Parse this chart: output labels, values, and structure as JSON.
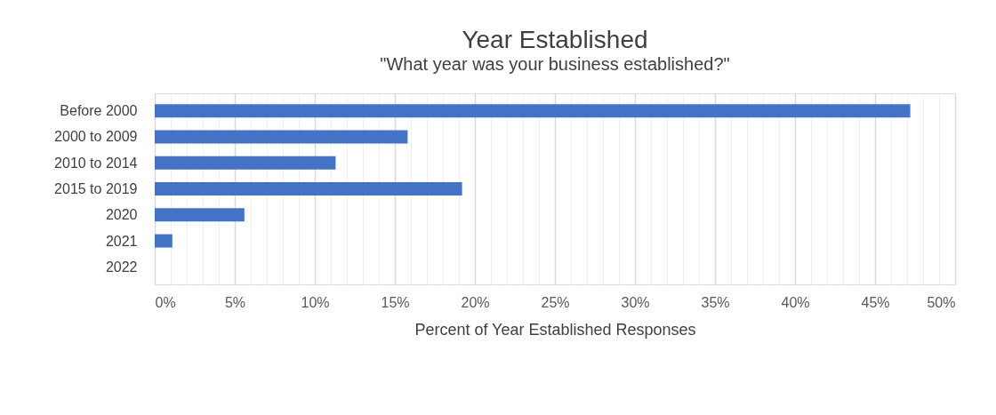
{
  "chart_data": {
    "type": "bar",
    "orientation": "horizontal",
    "title": "Year Established",
    "subtitle": "\"What year was your business established?\"",
    "xlabel": "Percent of Year Established Responses",
    "categories": [
      "Before 2000",
      "2000 to 2009",
      "2010 to 2014",
      "2015 to 2019",
      "2020",
      "2021",
      "2022"
    ],
    "values": [
      47.2,
      15.8,
      11.3,
      19.2,
      5.6,
      1.1,
      0
    ],
    "color": "#4472c4",
    "xlim": [
      0,
      50
    ],
    "xticks": [
      {
        "value": 0,
        "label": "0%"
      },
      {
        "value": 1,
        "label": null
      },
      {
        "value": 2,
        "label": null
      },
      {
        "value": 3,
        "label": null
      },
      {
        "value": 4,
        "label": null
      },
      {
        "value": 5,
        "label": "5%"
      },
      {
        "value": 6,
        "label": null
      },
      {
        "value": 7,
        "label": null
      },
      {
        "value": 8,
        "label": null
      },
      {
        "value": 9,
        "label": null
      },
      {
        "value": 10,
        "label": "10%"
      },
      {
        "value": 11,
        "label": null
      },
      {
        "value": 12,
        "label": null
      },
      {
        "value": 13,
        "label": null
      },
      {
        "value": 14,
        "label": null
      },
      {
        "value": 15,
        "label": "15%"
      },
      {
        "value": 16,
        "label": null
      },
      {
        "value": 17,
        "label": null
      },
      {
        "value": 18,
        "label": null
      },
      {
        "value": 19,
        "label": null
      },
      {
        "value": 20,
        "label": "20%"
      },
      {
        "value": 21,
        "label": null
      },
      {
        "value": 22,
        "label": null
      },
      {
        "value": 23,
        "label": null
      },
      {
        "value": 24,
        "label": null
      },
      {
        "value": 25,
        "label": "25%"
      },
      {
        "value": 26,
        "label": null
      },
      {
        "value": 27,
        "label": null
      },
      {
        "value": 28,
        "label": null
      },
      {
        "value": 29,
        "label": null
      },
      {
        "value": 30,
        "label": "30%"
      },
      {
        "value": 31,
        "label": null
      },
      {
        "value": 32,
        "label": null
      },
      {
        "value": 33,
        "label": null
      },
      {
        "value": 34,
        "label": null
      },
      {
        "value": 35,
        "label": "35%"
      },
      {
        "value": 36,
        "label": null
      },
      {
        "value": 37,
        "label": null
      },
      {
        "value": 38,
        "label": null
      },
      {
        "value": 39,
        "label": null
      },
      {
        "value": 40,
        "label": "40%"
      },
      {
        "value": 41,
        "label": null
      },
      {
        "value": 42,
        "label": null
      },
      {
        "value": 43,
        "label": null
      },
      {
        "value": 44,
        "label": null
      },
      {
        "value": 45,
        "label": "45%"
      },
      {
        "value": 46,
        "label": null
      },
      {
        "value": 47,
        "label": null
      },
      {
        "value": 48,
        "label": null
      },
      {
        "value": 49,
        "label": null
      },
      {
        "value": 50,
        "label": "50%"
      }
    ],
    "grid": "x"
  }
}
